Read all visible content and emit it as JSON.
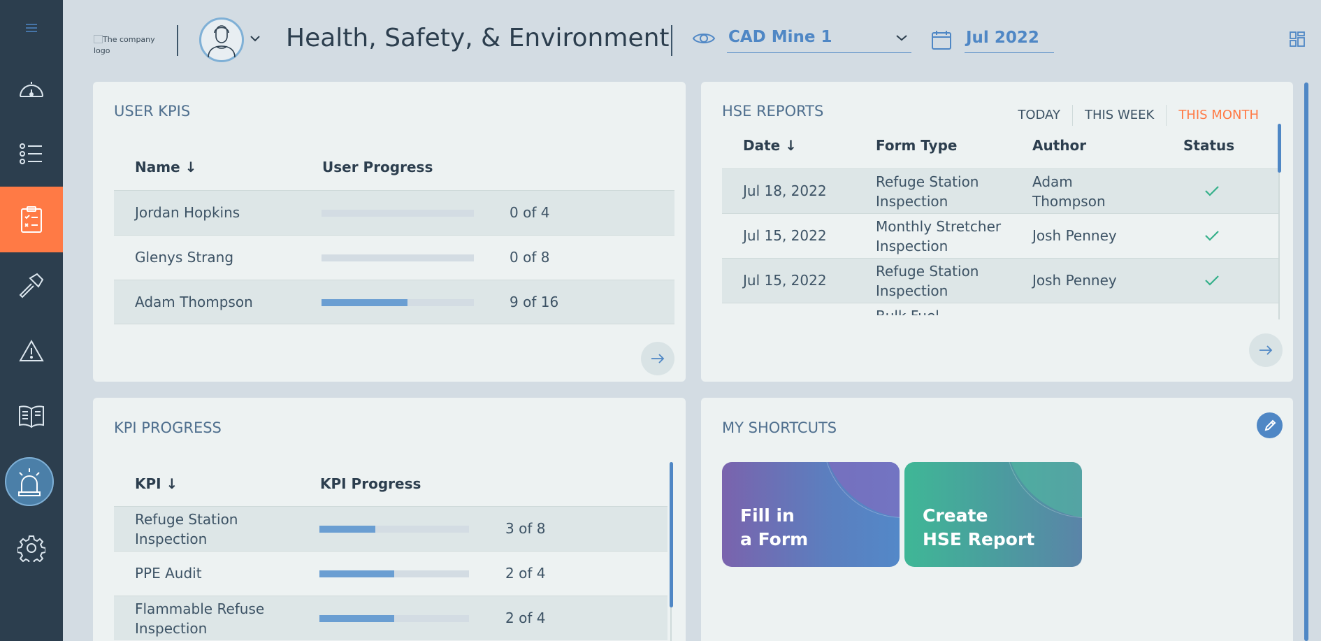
{
  "header": {
    "logo_alt": "The company logo",
    "title": "Health, Safety, & Environment",
    "site": "CAD Mine 1",
    "period": "Jul 2022"
  },
  "sidebar": {
    "items": [
      {
        "icon": "menu-icon"
      },
      {
        "icon": "dashboard-gauge-icon"
      },
      {
        "icon": "checklist-icon"
      },
      {
        "icon": "clipboard-icon",
        "active": true
      },
      {
        "icon": "hammer-icon"
      },
      {
        "icon": "warning-icon"
      },
      {
        "icon": "book-icon"
      },
      {
        "icon": "alarm-icon"
      },
      {
        "icon": "gear-icon"
      }
    ],
    "active_color": "#ff7a45"
  },
  "user_kpis": {
    "title": "USER KPIS",
    "col_name": "Name ↓",
    "col_progress": "User Progress",
    "rows": [
      {
        "name": "Jordan Hopkins",
        "progress": "0 of 4",
        "fraction": 0
      },
      {
        "name": "Glenys Strang",
        "progress": "0 of 8",
        "fraction": 0
      },
      {
        "name": "Adam Thompson",
        "progress": "9 of 16",
        "fraction": 0.5625
      }
    ]
  },
  "hse_reports": {
    "title": "HSE REPORTS",
    "tabs": [
      "TODAY",
      "THIS WEEK",
      "THIS MONTH"
    ],
    "active_tab": "THIS MONTH",
    "col_date": "Date ↓",
    "col_type": "Form Type",
    "col_author": "Author",
    "col_status": "Status",
    "rows": [
      {
        "date": "Jul 18, 2022",
        "type_l1": "Refuge Station",
        "type_l2": "Inspection",
        "author_l1": "Adam",
        "author_l2": "Thompson",
        "status": "check-icon"
      },
      {
        "date": "Jul 15, 2022",
        "type_l1": "Monthly Stretcher",
        "type_l2": "Inspection",
        "author_l1": "Josh Penney",
        "author_l2": "",
        "status": "check-icon"
      },
      {
        "date": "Jul 15, 2022",
        "type_l1": "Refuge Station",
        "type_l2": "Inspection",
        "author_l1": "Josh Penney",
        "author_l2": "",
        "status": "check-icon"
      },
      {
        "date": "",
        "type_l1": "Bulk Fuel",
        "type_l2": "",
        "author_l1": "",
        "author_l2": "",
        "status": ""
      }
    ],
    "status_color": "#35b08a"
  },
  "kpi_progress": {
    "title": "KPI PROGRESS",
    "col_kpi": "KPI ↓",
    "col_progress": "KPI Progress",
    "rows": [
      {
        "kpi_l1": "Refuge Station",
        "kpi_l2": "Inspection",
        "progress": "3 of 8",
        "fraction": 0.375
      },
      {
        "kpi_l1": "PPE Audit",
        "kpi_l2": "",
        "progress": "2 of 4",
        "fraction": 0.5
      },
      {
        "kpi_l1": "Flammable Refuse",
        "kpi_l2": "Inspection",
        "progress": "2 of 4",
        "fraction": 0.5
      }
    ]
  },
  "shortcuts": {
    "title": "MY SHORTCUTS",
    "items": [
      {
        "l1": "Fill in",
        "l2": "a Form"
      },
      {
        "l1": "Create",
        "l2": "HSE Report"
      }
    ]
  }
}
